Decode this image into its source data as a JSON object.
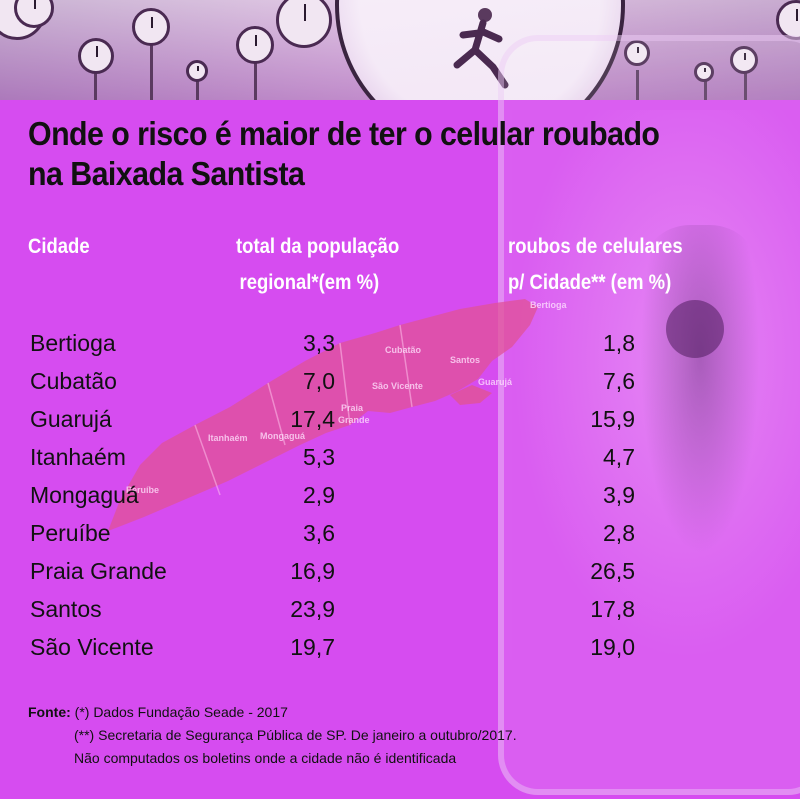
{
  "title_line1": "Onde o risco é maior de ter o celular roubado",
  "title_line2": "na Baixada Santista",
  "headers": {
    "city": "Cidade",
    "population_line1": "total da população",
    "population_line2": "regional*(em %)",
    "robberies_line1": "roubos de celulares",
    "robberies_line2": "p/ Cidade** (em %)"
  },
  "rows": [
    {
      "city": "Bertioga",
      "population": "3,3",
      "robberies": "1,8"
    },
    {
      "city": "Cubatão",
      "population": "7,0",
      "robberies": "7,6"
    },
    {
      "city": "Guarujá",
      "population": "17,4",
      "robberies": "15,9"
    },
    {
      "city": "Itanhaém",
      "population": "5,3",
      "robberies": "4,7"
    },
    {
      "city": "Mongaguá",
      "population": "2,9",
      "robberies": "3,9"
    },
    {
      "city": "Peruíbe",
      "population": "3,6",
      "robberies": "2,8"
    },
    {
      "city": "Praia Grande",
      "population": "16,9",
      "robberies": "26,5"
    },
    {
      "city": "Santos",
      "population": "23,9",
      "robberies": "17,8"
    },
    {
      "city": "São Vicente",
      "population": "19,7",
      "robberies": "19,0"
    }
  ],
  "map_labels": {
    "bertioga": "Bertioga",
    "cubatao": "Cubatão",
    "santos": "Santos",
    "sao_vicente": "São Vicente",
    "guaruja": "Guarujá",
    "praia": "Praia",
    "grande": "Grande",
    "itanhaem": "Itanhaém",
    "mongagua": "Mongaguá",
    "peruibe": "Peruíbe"
  },
  "footer": {
    "label": "Fonte:",
    "line1": "(*) Dados Fundação Seade - 2017",
    "line2": "(**) Secretaria de Segurança Pública de SP. De janeiro a outubro/2017.",
    "line3": "Não computados os boletins onde a cidade não é identificada"
  },
  "colors": {
    "background": "#d64cf0",
    "header_text": "#ffffff",
    "body_text": "#111111",
    "map_fill": "#e0529a"
  }
}
